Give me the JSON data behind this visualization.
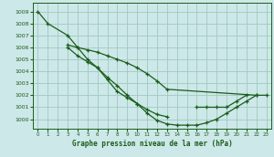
{
  "title": "Graphe pression niveau de la mer (hPa)",
  "background_color": "#cde8e8",
  "grid_color": "#a0c8c0",
  "line_color": "#1a5c1a",
  "xlim": [
    -0.5,
    23.5
  ],
  "ylim": [
    999.2,
    1009.7
  ],
  "yticks": [
    1000,
    1001,
    1002,
    1003,
    1004,
    1005,
    1006,
    1007,
    1008,
    1009
  ],
  "xticks": [
    0,
    1,
    2,
    3,
    4,
    5,
    6,
    7,
    8,
    9,
    10,
    11,
    12,
    13,
    14,
    15,
    16,
    17,
    18,
    19,
    20,
    21,
    22,
    23
  ],
  "series": [
    {
      "x": [
        0,
        1,
        3,
        4,
        5,
        6,
        7,
        8,
        9,
        10,
        11,
        12,
        13
      ],
      "y": [
        1009.0,
        1008.0,
        1007.0,
        1006.0,
        1005.0,
        1004.3,
        1003.3,
        1002.3,
        1001.8,
        1001.3,
        1000.8,
        1000.4,
        1000.2
      ]
    },
    {
      "x": [
        3,
        4,
        5,
        6,
        7,
        8,
        9,
        10,
        11,
        12,
        13,
        22
      ],
      "y": [
        1006.2,
        1006.0,
        1005.8,
        1005.6,
        1005.3,
        1005.0,
        1004.7,
        1004.3,
        1003.8,
        1003.2,
        1002.5,
        1002.0
      ]
    },
    {
      "x": [
        3,
        4,
        5,
        6,
        7,
        8,
        9,
        10,
        11,
        12,
        13,
        14,
        15,
        16,
        17,
        18,
        19,
        20,
        21,
        22,
        23
      ],
      "y": [
        1006.0,
        1005.3,
        1004.8,
        1004.3,
        1003.5,
        1002.8,
        1002.0,
        1001.3,
        1000.5,
        999.9,
        999.6,
        999.5,
        999.5,
        999.5,
        999.7,
        1000.0,
        1000.5,
        1001.0,
        1001.5,
        1002.0,
        1002.0
      ]
    },
    {
      "x": [
        16,
        17,
        18,
        19,
        20,
        21
      ],
      "y": [
        1001.0,
        1001.0,
        1001.0,
        1001.0,
        1001.5,
        1002.0
      ]
    }
  ]
}
